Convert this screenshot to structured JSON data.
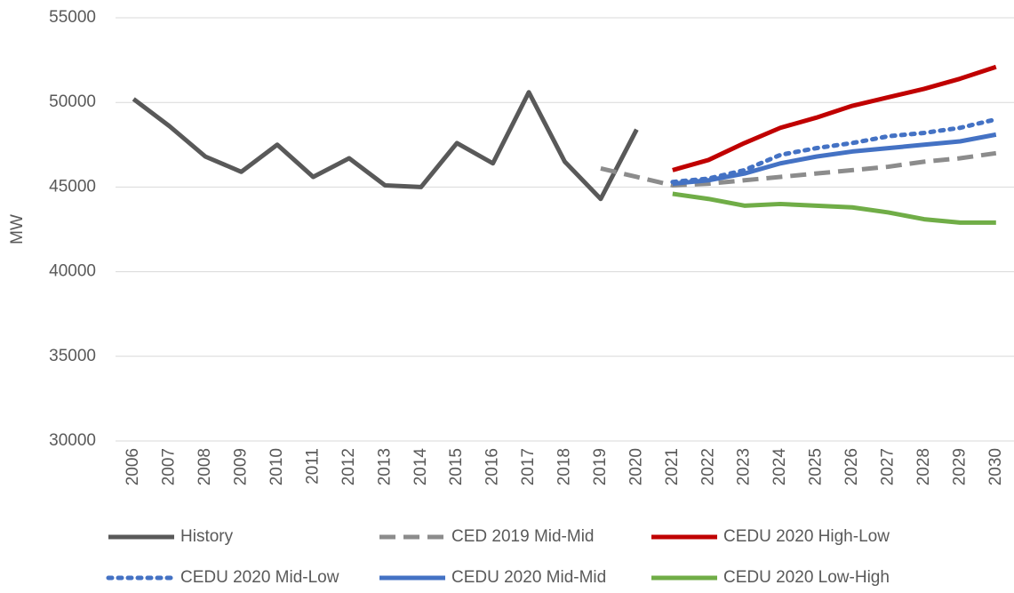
{
  "chart_data": {
    "type": "line",
    "y_label": "MW",
    "categories": [
      "2006",
      "2007",
      "2008",
      "2009",
      "2010",
      "2011",
      "2012",
      "2013",
      "2014",
      "2015",
      "2016",
      "2017",
      "2018",
      "2019",
      "2020",
      "2021",
      "2022",
      "2023",
      "2024",
      "2025",
      "2026",
      "2027",
      "2028",
      "2029",
      "2030"
    ],
    "ylim": [
      30000,
      55000
    ],
    "yticks": [
      30000,
      35000,
      40000,
      45000,
      50000,
      55000
    ],
    "grid": true,
    "legend": "bottom",
    "series": [
      {
        "name": "History",
        "color": "#595959",
        "dash": "solid",
        "values": [
          50200,
          48600,
          46800,
          45900,
          47500,
          45600,
          46700,
          45100,
          45000,
          47600,
          46400,
          50600,
          46500,
          44300,
          48400,
          null,
          null,
          null,
          null,
          null,
          null,
          null,
          null,
          null,
          null
        ]
      },
      {
        "name": "CED 2019 Mid-Mid",
        "color": "#8c8c8c",
        "dash": "dashed",
        "values": [
          null,
          null,
          null,
          null,
          null,
          null,
          null,
          null,
          null,
          null,
          null,
          null,
          null,
          46100,
          45600,
          45100,
          45200,
          45400,
          45600,
          45800,
          46000,
          46200,
          46500,
          46700,
          47000
        ]
      },
      {
        "name": "CEDU 2020 High-Low",
        "color": "#c00000",
        "dash": "solid",
        "values": [
          null,
          null,
          null,
          null,
          null,
          null,
          null,
          null,
          null,
          null,
          null,
          null,
          null,
          null,
          null,
          46000,
          46600,
          47600,
          48500,
          49100,
          49800,
          50300,
          50800,
          51400,
          52100
        ]
      },
      {
        "name": "CEDU 2020 Mid-Low",
        "color": "#4472c4",
        "dash": "dotted",
        "values": [
          null,
          null,
          null,
          null,
          null,
          null,
          null,
          null,
          null,
          null,
          null,
          null,
          null,
          null,
          null,
          45300,
          45500,
          46000,
          46900,
          47300,
          47600,
          48000,
          48200,
          48500,
          49000
        ]
      },
      {
        "name": "CEDU 2020 Mid-Mid",
        "color": "#4472c4",
        "dash": "solid",
        "values": [
          null,
          null,
          null,
          null,
          null,
          null,
          null,
          null,
          null,
          null,
          null,
          null,
          null,
          null,
          null,
          45200,
          45400,
          45800,
          46400,
          46800,
          47100,
          47300,
          47500,
          47700,
          48100
        ]
      },
      {
        "name": "CEDU 2020 Low-High",
        "color": "#70ad47",
        "dash": "solid",
        "values": [
          null,
          null,
          null,
          null,
          null,
          null,
          null,
          null,
          null,
          null,
          null,
          null,
          null,
          null,
          null,
          44600,
          44300,
          43900,
          44000,
          43900,
          43800,
          43500,
          43100,
          42900,
          42900
        ]
      }
    ]
  }
}
